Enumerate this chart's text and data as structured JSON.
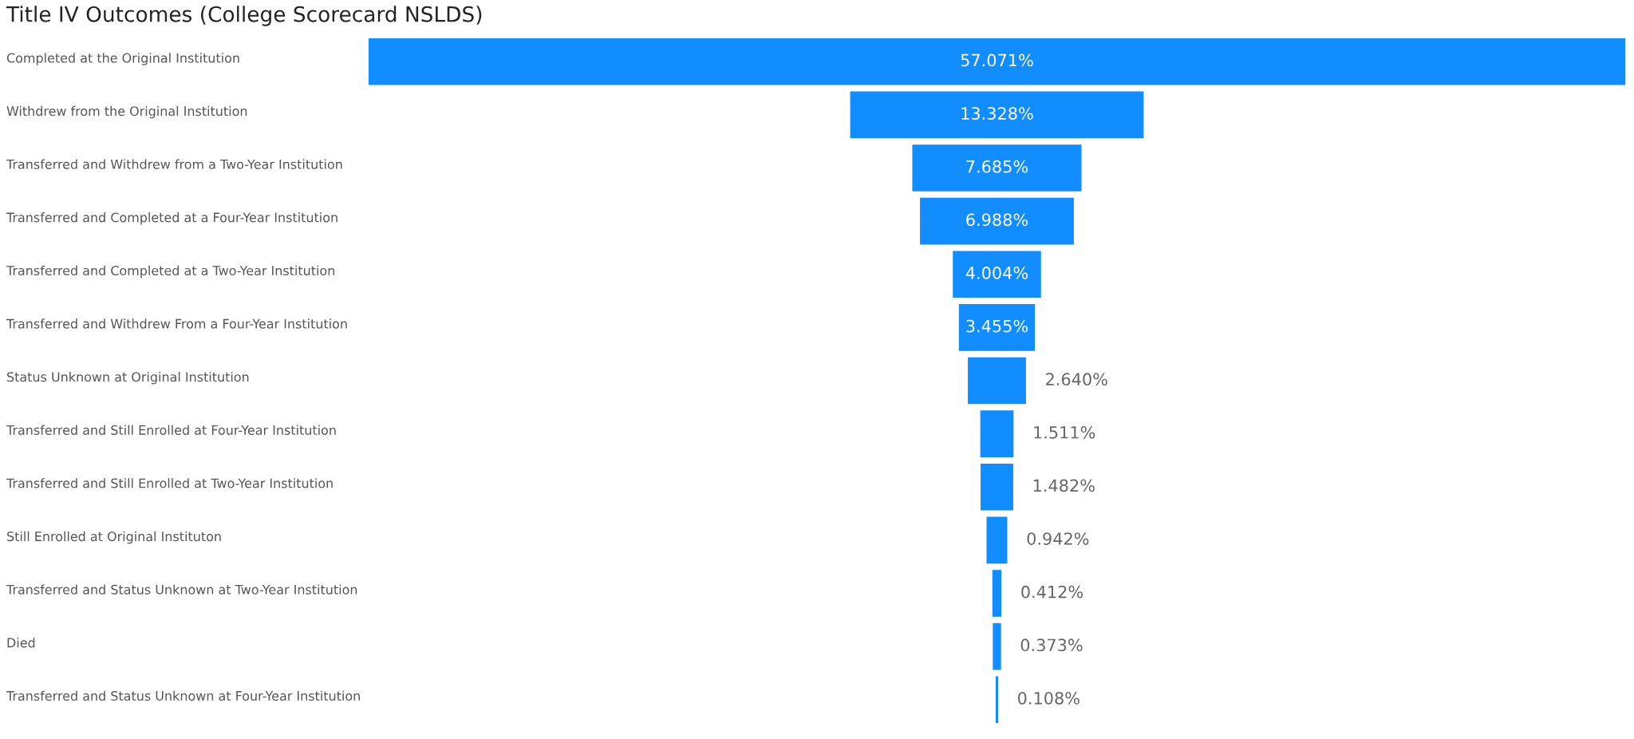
{
  "chart_data": {
    "type": "other",
    "title": "Title IV Outcomes (College Scorecard NSLDS)",
    "categories": [
      "Completed at the Original Institution",
      "Withdrew from the Original Institution",
      "Transferred and Withdrew from a Two-Year Institution",
      "Transferred and Completed at a Four-Year Institution",
      "Transferred and Completed at a Two-Year Institution",
      "Transferred and Withdrew From a Four-Year Institution",
      "Status Unknown at Original Institution",
      "Transferred and Still Enrolled at Four-Year Institution",
      "Transferred and Still Enrolled at Two-Year Institution",
      "Still Enrolled at Original Instituton",
      "Transferred and Status Unknown at Two-Year Institution",
      "Died",
      "Transferred and Status Unknown at Four-Year Institution"
    ],
    "values": [
      57.071,
      13.328,
      7.685,
      6.988,
      4.004,
      3.455,
      2.64,
      1.511,
      1.482,
      0.942,
      0.412,
      0.373,
      0.108
    ],
    "value_labels": [
      "57.071%",
      "13.328%",
      "7.685%",
      "6.988%",
      "4.004%",
      "3.455%",
      "2.640%",
      "1.511%",
      "1.482%",
      "0.942%",
      "0.412%",
      "0.373%",
      "0.108%"
    ],
    "color": "#118dff"
  }
}
